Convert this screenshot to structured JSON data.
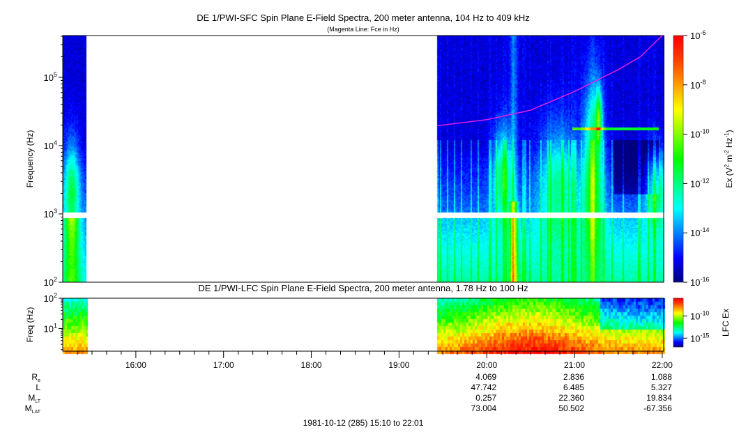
{
  "chart_data": {
    "type": "heatmap",
    "title": "DE 1/PWI-SFC  Spin Plane E-Field Spectra, 200 meter antenna, 104 Hz to 409 kHz",
    "subtitle": "(Magenta Line: Fce in Hz)",
    "panels": [
      {
        "name": "sfc",
        "title": "DE 1/PWI-SFC  Spin Plane E-Field Spectra, 200 meter antenna, 104 Hz to 409 kHz",
        "ylabel": "Frequency (Hz)",
        "yscale": "log",
        "ylim": [
          100,
          409000
        ],
        "yticks": [
          {
            "base": "10",
            "exp": "2"
          },
          {
            "base": "10",
            "exp": "3"
          },
          {
            "base": "10",
            "exp": "4"
          },
          {
            "base": "10",
            "exp": "5"
          }
        ],
        "colorbar": {
          "label_main": "Ex (V",
          "label_full": "Ex (V^2 m^-2 Hz^-1)",
          "range_log10": [
            -16,
            -6
          ],
          "ticks": [
            {
              "base": "10",
              "exp": "-6"
            },
            {
              "base": "10",
              "exp": "-8"
            },
            {
              "base": "10",
              "exp": "-10"
            },
            {
              "base": "10",
              "exp": "-12"
            },
            {
              "base": "10",
              "exp": "-14"
            },
            {
              "base": "10",
              "exp": "-16"
            }
          ]
        },
        "data_intervals": [
          [
            "15:10",
            "15:26"
          ],
          [
            "19:26",
            "22:01"
          ]
        ],
        "gap_band_hz": [
          900,
          1050
        ],
        "fce_line": {
          "color": "#e020e0",
          "points": [
            [
              "19:26",
              19500
            ],
            [
              "20:00",
              24000
            ],
            [
              "20:30",
              33000
            ],
            [
              "21:00",
              62000
            ],
            [
              "21:30",
              130000
            ],
            [
              "21:45",
              200000
            ],
            [
              "22:00",
              409000
            ]
          ]
        }
      },
      {
        "name": "lfc",
        "title": "DE 1/PWI-LFC  Spin Plane E-Field Spectra, 200 meter antenna, 1.78 Hz to 100 Hz",
        "ylabel": "Freq (Hz)",
        "yscale": "log",
        "ylim": [
          1.78,
          100
        ],
        "yticks": [
          {
            "base": "10",
            "exp": "2"
          },
          {
            "base": "10",
            "exp": "1"
          }
        ],
        "colorbar": {
          "label": "LFC Ex",
          "range_log10": [
            -17,
            -6
          ],
          "ticks": [
            {
              "base": "10",
              "exp": "-10"
            },
            {
              "base": "10",
              "exp": "-15"
            }
          ]
        }
      }
    ],
    "xaxis": {
      "range": [
        "15:10",
        "22:01"
      ],
      "ticks": [
        "16:00",
        "17:00",
        "18:00",
        "19:00",
        "20:00",
        "21:00",
        "22:00"
      ]
    },
    "footer": "1981-10-12 (285) 15:10 to 22:01",
    "ephemeris": {
      "rows": [
        {
          "label": "R",
          "sub": "e",
          "values": [
            "4.069",
            "2.836",
            "1.088"
          ]
        },
        {
          "label": "L",
          "sub": "",
          "values": [
            "47.742",
            "6.485",
            "5.327"
          ]
        },
        {
          "label": "M",
          "sub": "LT",
          "values": [
            "0.257",
            "22.360",
            "19.834"
          ]
        },
        {
          "label": "M",
          "sub": "LAT",
          "values": [
            "73.004",
            "50.502",
            "-67.356"
          ]
        }
      ],
      "at": [
        "20:00",
        "21:00",
        "22:00"
      ]
    },
    "colormap": [
      "#000080",
      "#0000ff",
      "#0080ff",
      "#00ffff",
      "#00ff80",
      "#00ff00",
      "#80ff00",
      "#ffff00",
      "#ffa000",
      "#ff4000",
      "#ff0000"
    ]
  }
}
